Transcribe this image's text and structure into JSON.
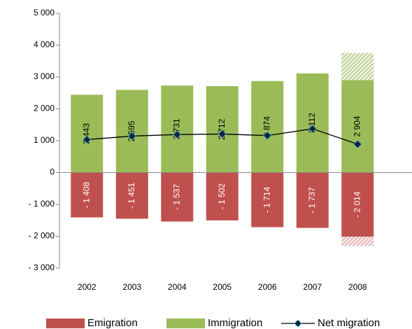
{
  "chart_data": {
    "type": "bar",
    "categories": [
      "2002",
      "2003",
      "2004",
      "2005",
      "2006",
      "2007",
      "2008"
    ],
    "series": [
      {
        "name": "Emigration",
        "type": "bar",
        "color": "#c0504d",
        "values": [
          -1408,
          -1451,
          -1537,
          -1502,
          -1714,
          -1737,
          -2014
        ],
        "value_labels": [
          "- 1 408",
          "- 1 451",
          "- 1 537",
          "- 1 502",
          "- 1 714",
          "- 1 737",
          "- 2 014"
        ]
      },
      {
        "name": "Immigration",
        "type": "bar",
        "color": "#9bbb59",
        "values": [
          2443,
          2595,
          2731,
          2712,
          2874,
          3112,
          2904
        ],
        "value_labels": [
          "2 443",
          "2 595",
          "2 731",
          "2 712",
          "2 874",
          "3 112",
          "2 904"
        ]
      },
      {
        "name": "Net migration",
        "type": "line",
        "color": "#000000",
        "marker_color": "#0f243e",
        "values": [
          1035,
          1144,
          1194,
          1210,
          1160,
          1375,
          890
        ]
      },
      {
        "type": "bar",
        "color": "#c3d69b",
        "hatched": true,
        "values": [
          null,
          null,
          null,
          null,
          null,
          null,
          850
        ]
      },
      {
        "type": "bar",
        "color": "#e6b9b8",
        "hatched": true,
        "values": [
          null,
          null,
          null,
          null,
          null,
          null,
          -290
        ]
      }
    ],
    "ylim": [
      -3000,
      5000
    ],
    "yticks": [
      {
        "value": -3000,
        "label": "- 3 000"
      },
      {
        "value": -2000,
        "label": "- 2 000"
      },
      {
        "value": -1000,
        "label": "- 1 000"
      },
      0,
      {
        "value": 1000,
        "label": "1 000"
      },
      {
        "value": 2000,
        "label": "2 000"
      },
      {
        "value": 3000,
        "label": "3 000"
      },
      {
        "value": 4000,
        "label": "4 000"
      },
      {
        "value": 5000,
        "label": "5 000"
      }
    ]
  }
}
